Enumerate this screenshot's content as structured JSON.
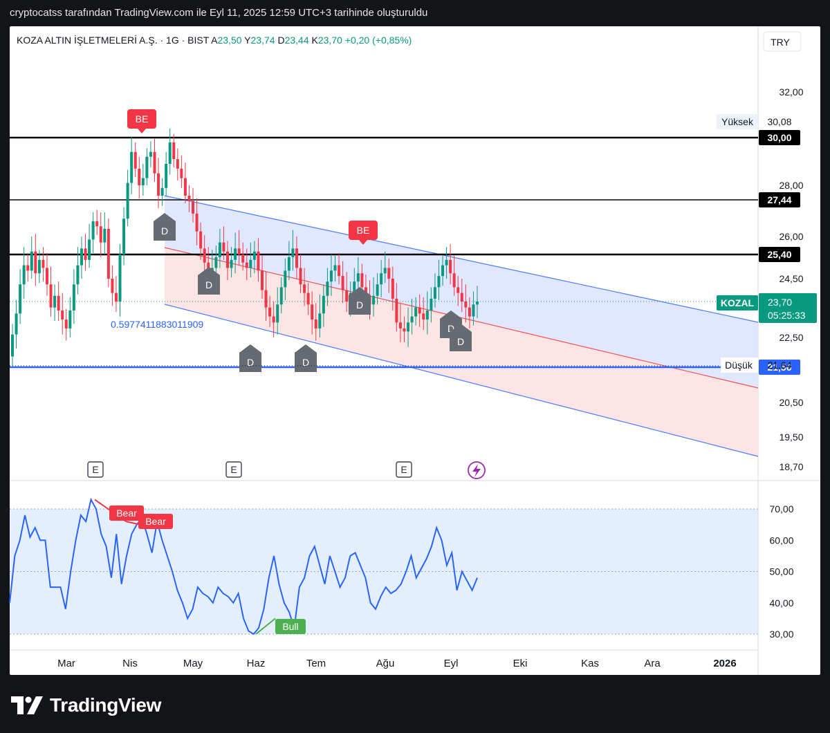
{
  "header": {
    "caption": "cryptocatss tarafından TradingView.com ile Eyl 11, 2025 12:59 UTC+3 tarihinde oluşturuldu"
  },
  "legend": {
    "symbol": "KOZA ALTIN İŞLETMELERİ A.Ş. · 1G · BIST",
    "o_label": "A",
    "o_value": "23,50",
    "h_label": "Y",
    "h_value": "23,74",
    "l_label": "D",
    "l_value": "23,44",
    "c_label": "K",
    "c_value": "23,70",
    "change": "+0,20 (+0,85%)",
    "currency": "TRY"
  },
  "colors": {
    "up": "#089981",
    "down": "#f23645",
    "blue": "#2962ff",
    "channel_line": "#4a7bff",
    "mid_line": "#f05252",
    "upper_fill": "#dbe3ff",
    "lower_fill": "#fde0e0",
    "rsi_line": "#2962ff",
    "rsi_band": "#e3effd",
    "marker_gray": "#666a73",
    "level_black": "#000000"
  },
  "price_axis": {
    "ticks": [
      "32,00",
      "28,00",
      "26,00",
      "24,50",
      "22,50",
      "20,50",
      "19,50",
      "18,70"
    ],
    "levels": [
      {
        "value": "30,00",
        "style": "black"
      },
      {
        "value": "27,44",
        "style": "black"
      },
      {
        "value": "25,40",
        "style": "black"
      },
      {
        "value": "21,56",
        "style": "blue"
      }
    ],
    "high_label": "Yüksek",
    "high_value": "30,08",
    "low_label": "Düşük",
    "low_value": "21,64",
    "last_label": "KOZAL",
    "last_value": "23,70",
    "countdown": "05:25:33"
  },
  "rsi_axis": {
    "ticks": [
      "70,00",
      "60,00",
      "50,00",
      "40,00",
      "30,00"
    ]
  },
  "time_axis": {
    "labels": [
      "Mar",
      "Nis",
      "May",
      "Haz",
      "Tem",
      "Ağu",
      "Eyl",
      "Eki",
      "Kas",
      "Ara",
      "2026"
    ]
  },
  "annotations": {
    "channel_ratio": "0.5977411883011909",
    "be_label": "BE",
    "d_label": "D",
    "e_label": "E",
    "bear_label": "Bear",
    "bull_label": "Bull",
    "flash_icon": "lightning-icon"
  },
  "chart_data": [
    {
      "type": "candlestick",
      "title": "",
      "x_unit": "daily bars, Feb 2025 – Sep 11 2025",
      "y_range": [
        18.7,
        32.0
      ],
      "close_series": [
        22.6,
        23.3,
        24.3,
        25.0,
        24.8,
        25.5,
        24.7,
        25.2,
        24.9,
        24.3,
        23.5,
        23.9,
        23.4,
        23.1,
        22.8,
        23.4,
        24.3,
        25.0,
        25.6,
        25.2,
        25.9,
        26.6,
        26.4,
        25.8,
        26.3,
        24.5,
        24.0,
        23.7,
        25.4,
        26.7,
        28.1,
        29.4,
        28.7,
        28.0,
        28.3,
        29.2,
        29.4,
        28.5,
        27.6,
        27.9,
        28.9,
        29.8,
        29.1,
        28.7,
        28.3,
        27.6,
        27.4,
        26.9,
        26.2,
        25.6,
        25.1,
        24.6,
        24.9,
        25.3,
        25.8,
        25.5,
        24.9,
        25.2,
        25.6,
        25.4,
        25.1,
        24.9,
        25.2,
        25.5,
        24.8,
        24.1,
        23.5,
        23.2,
        23.0,
        23.6,
        24.2,
        24.8,
        25.3,
        25.6,
        24.9,
        24.3,
        24.0,
        23.6,
        23.1,
        22.8,
        23.3,
        23.9,
        24.4,
        24.8,
        25.0,
        24.6,
        24.1,
        23.7,
        24.0,
        24.4,
        24.7,
        24.2,
        23.9,
        23.6,
        23.9,
        24.3,
        24.7,
        24.9,
        24.5,
        23.8,
        23.0,
        22.8,
        22.7,
        23.0,
        23.2,
        23.5,
        23.3,
        23.1,
        23.4,
        23.8,
        24.2,
        24.6,
        25.0,
        25.2,
        24.7,
        24.2,
        24.0,
        23.7,
        23.5,
        23.2,
        23.6,
        23.7
      ],
      "annotations": [
        "BE",
        "BE",
        "D",
        "E",
        "lightning"
      ],
      "price_levels": [
        30.0,
        27.44,
        25.4,
        21.56
      ],
      "high": 30.08,
      "low": 21.64,
      "last": 23.7
    },
    {
      "type": "line",
      "title": "",
      "y_range": [
        30,
        70
      ],
      "band": [
        30,
        70
      ],
      "midline": 50,
      "values": [
        40,
        55,
        60,
        68,
        61,
        64,
        60,
        60,
        45,
        45,
        45,
        38,
        50,
        60,
        68,
        66,
        73,
        70,
        62,
        58,
        48,
        62,
        46,
        55,
        62,
        65,
        67,
        62,
        56,
        66,
        60,
        55,
        50,
        44,
        40,
        35,
        38,
        45,
        43,
        42,
        40,
        45,
        43,
        42,
        40,
        43,
        35,
        31,
        30,
        32,
        38,
        48,
        55,
        46,
        40,
        37,
        32,
        45,
        48,
        55,
        58,
        52,
        46,
        55,
        50,
        45,
        48,
        55,
        56,
        52,
        48,
        40,
        38,
        42,
        45,
        43,
        44,
        46,
        50,
        55,
        48,
        51,
        54,
        58,
        64,
        60,
        52,
        56,
        44,
        50,
        47,
        44,
        48
      ],
      "signals": [
        "Bear",
        "Bear",
        "Bull"
      ]
    }
  ]
}
